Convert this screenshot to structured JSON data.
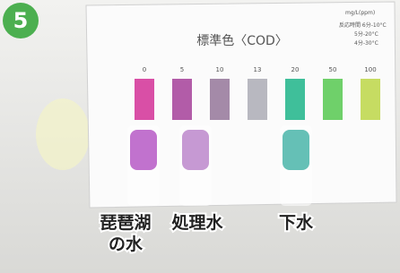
{
  "badge": "5",
  "card": {
    "title": "標準色〈COD〉",
    "unit": "mg/L(ppm)",
    "reaction_times": [
      "反応時間 6分-10°C",
      "5分-20°C",
      "4分-30°C"
    ],
    "swatches": [
      {
        "label": 0,
        "color": "#d94fa6"
      },
      {
        "label": 5,
        "color": "#b25ca8"
      },
      {
        "label": 10,
        "color": "#a48aa8"
      },
      {
        "label": 13,
        "color": "#b8b8c0"
      },
      {
        "label": 20,
        "color": "#3fbf9a"
      },
      {
        "label": 50,
        "color": "#6fd06a"
      },
      {
        "label": 100,
        "color": "#c6dc62"
      }
    ]
  },
  "samples": [
    {
      "lines": [
        "琵琶湖",
        "の水"
      ],
      "color": "#b24fc2"
    },
    {
      "lines": [
        "処理水"
      ],
      "color": "#b87fc8"
    },
    {
      "lines": [
        "下水"
      ],
      "color": "#3fb0a4"
    }
  ]
}
